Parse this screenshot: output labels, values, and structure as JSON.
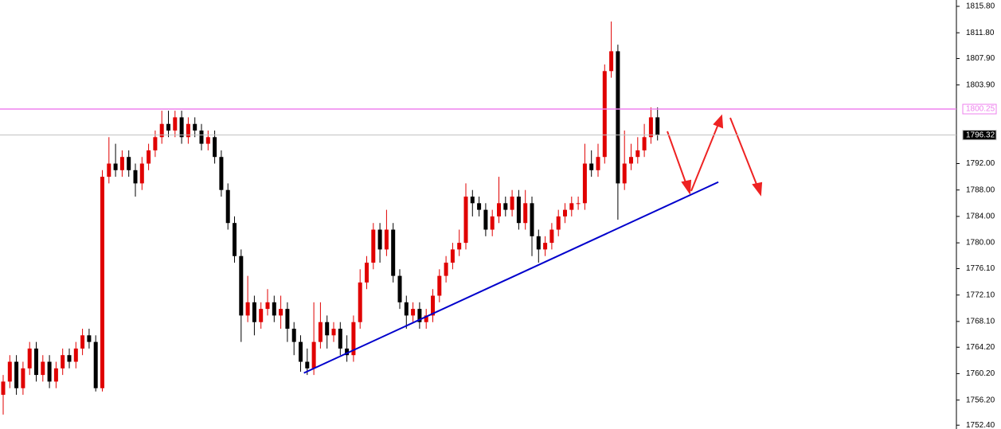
{
  "chart_data": {
    "type": "candlestick",
    "open": [
      1757,
      1759,
      1762,
      1758,
      1761,
      1764,
      1760,
      1762,
      1759,
      1761,
      1763,
      1762,
      1764,
      1766,
      1765,
      1758,
      1790,
      1792,
      1791,
      1793,
      1791,
      1789,
      1792,
      1794,
      1796,
      1798,
      1797,
      1799,
      1796,
      1798,
      1797,
      1795,
      1796,
      1793,
      1788,
      1783,
      1778,
      1769,
      1771,
      1768,
      1770,
      1771,
      1769,
      1770,
      1767,
      1765,
      1762,
      1761,
      1765,
      1768,
      1766,
      1767,
      1764,
      1763,
      1768,
      1774,
      1777,
      1782,
      1779,
      1782,
      1775,
      1771,
      1769,
      1770,
      1768,
      1769,
      1772,
      1775,
      1777,
      1779,
      1780,
      1787,
      1786,
      1785,
      1782,
      1784,
      1786,
      1785,
      1787,
      1783,
      1786,
      1781,
      1779,
      1780,
      1782,
      1784,
      1785,
      1786,
      1786,
      1792,
      1791,
      1793,
      1806,
      1809,
      1789,
      1792,
      1793,
      1794,
      1796,
      1799
    ],
    "high": [
      1760,
      1763,
      1763,
      1762,
      1765,
      1765,
      1763,
      1763,
      1762,
      1764,
      1764,
      1765,
      1767,
      1767,
      1766,
      1791,
      1796,
      1795,
      1794,
      1794,
      1792,
      1793,
      1795,
      1797,
      1800,
      1800,
      1800,
      1800,
      1799,
      1799,
      1798,
      1797,
      1797,
      1794,
      1789,
      1784,
      1779,
      1775,
      1772,
      1771,
      1773,
      1772,
      1772,
      1771,
      1768,
      1766,
      1764,
      1771,
      1771,
      1769,
      1768,
      1768,
      1766,
      1769,
      1776,
      1778,
      1783,
      1783,
      1785,
      1783,
      1776,
      1772,
      1771,
      1771,
      1770,
      1773,
      1776,
      1778,
      1780,
      1782,
      1789,
      1788,
      1787,
      1786,
      1785,
      1790,
      1787,
      1788,
      1788,
      1788,
      1787,
      1782,
      1781,
      1783,
      1785,
      1786,
      1787,
      1787,
      1795,
      1794,
      1795,
      1807,
      1813.5,
      1810,
      1797,
      1795,
      1796,
      1798,
      1800.5,
      1800.5
    ],
    "low": [
      1754,
      1758,
      1757,
      1757,
      1760,
      1759,
      1759,
      1758,
      1758,
      1760,
      1761,
      1761,
      1763,
      1764,
      1757.5,
      1757.5,
      1789,
      1790,
      1790,
      1790,
      1787,
      1788,
      1791,
      1793,
      1795,
      1796,
      1796,
      1795,
      1795,
      1796,
      1794,
      1794,
      1792,
      1787,
      1782,
      1777,
      1765,
      1768,
      1766,
      1767,
      1769,
      1768,
      1767,
      1765,
      1763,
      1760.5,
      1760,
      1760,
      1764,
      1764,
      1765,
      1763,
      1762,
      1762,
      1767,
      1773,
      1776,
      1777,
      1778,
      1774,
      1770,
      1767,
      1768,
      1767,
      1767,
      1768,
      1771,
      1774,
      1776,
      1778,
      1779,
      1784,
      1784,
      1781,
      1781,
      1783,
      1784,
      1784,
      1782,
      1782,
      1778,
      1777,
      1778,
      1779,
      1781,
      1783,
      1784,
      1785,
      1785,
      1790,
      1790,
      1792,
      1805,
      1783.5,
      1788,
      1791,
      1792,
      1793,
      1795,
      1795.5
    ],
    "close": [
      1759,
      1762,
      1758,
      1761,
      1764,
      1760,
      1762,
      1759,
      1761,
      1763,
      1762,
      1764,
      1766,
      1765,
      1758,
      1790,
      1792,
      1791,
      1793,
      1791,
      1789,
      1792,
      1794,
      1796,
      1798,
      1797,
      1799,
      1796,
      1798,
      1797,
      1795,
      1796,
      1793,
      1788,
      1783,
      1778,
      1769,
      1771,
      1768,
      1770,
      1771,
      1769,
      1770,
      1767,
      1765,
      1762,
      1761,
      1765,
      1768,
      1766,
      1767,
      1764,
      1763,
      1768,
      1774,
      1777,
      1782,
      1779,
      1782,
      1775,
      1771,
      1769,
      1770,
      1768,
      1769,
      1772,
      1775,
      1777,
      1779,
      1780,
      1787,
      1786,
      1785,
      1782,
      1784,
      1786,
      1785,
      1787,
      1783,
      1786,
      1781,
      1779,
      1780,
      1782,
      1784,
      1785,
      1786,
      1786,
      1792,
      1791,
      1793,
      1806,
      1809,
      1789,
      1792,
      1793,
      1794,
      1796,
      1799,
      1796.32
    ],
    "up_color": "#e00000",
    "down_color": "#000000",
    "ylim": [
      1751.82,
      1816.76
    ],
    "yticks": [
      {
        "value": 1815.8,
        "label": "1815.80"
      },
      {
        "value": 1811.8,
        "label": "1811.80"
      },
      {
        "value": 1807.9,
        "label": "1807.90"
      },
      {
        "value": 1803.9,
        "label": "1803.90"
      },
      {
        "value": 1792,
        "label": "1792.00"
      },
      {
        "value": 1788,
        "label": "1788.00"
      },
      {
        "value": 1784,
        "label": "1784.00"
      },
      {
        "value": 1780,
        "label": "1780.00"
      },
      {
        "value": 1776.1,
        "label": "1776.10"
      },
      {
        "value": 1772.1,
        "label": "1772.10"
      },
      {
        "value": 1768.1,
        "label": "1768.10"
      },
      {
        "value": 1764.2,
        "label": "1764.20"
      },
      {
        "value": 1760.2,
        "label": "1760.20"
      },
      {
        "value": 1756.2,
        "label": "1756.20"
      },
      {
        "value": 1752.4,
        "label": "1752.40"
      }
    ],
    "hlines": [
      {
        "value": 1800.25,
        "color": "#ee82ee"
      },
      {
        "value": 1796.32,
        "color": "#c0c0c0"
      }
    ],
    "trendline": {
      "x": [
        45.5,
        108.2
      ],
      "y": [
        1760.3,
        1789.2
      ],
      "color": "#0000cc"
    }
  }
}
